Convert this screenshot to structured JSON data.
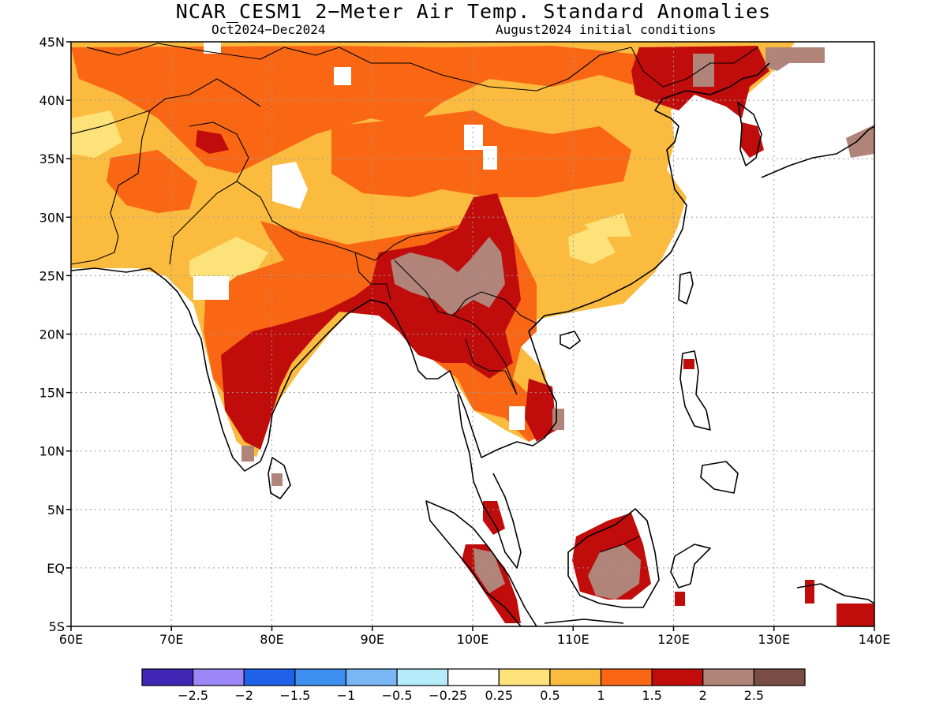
{
  "title": "NCAR_CESM1 2−Meter Air Temp. Standard Anomalies",
  "period": "Oct2024−Dec2024",
  "init": "August2024 initial conditions",
  "map": {
    "lon_range": [
      60,
      140
    ],
    "lat_range": [
      -5,
      45
    ],
    "lon_ticks": [
      {
        "value": 60,
        "label": "60E"
      },
      {
        "value": 70,
        "label": "70E"
      },
      {
        "value": 80,
        "label": "80E"
      },
      {
        "value": 90,
        "label": "90E"
      },
      {
        "value": 100,
        "label": "100E"
      },
      {
        "value": 110,
        "label": "110E"
      },
      {
        "value": 120,
        "label": "120E"
      },
      {
        "value": 130,
        "label": "130E"
      },
      {
        "value": 140,
        "label": "140E"
      }
    ],
    "lat_ticks": [
      {
        "value": 45,
        "label": "45N"
      },
      {
        "value": 40,
        "label": "40N"
      },
      {
        "value": 35,
        "label": "35N"
      },
      {
        "value": 30,
        "label": "30N"
      },
      {
        "value": 25,
        "label": "25N"
      },
      {
        "value": 20,
        "label": "20N"
      },
      {
        "value": 15,
        "label": "15N"
      },
      {
        "value": 10,
        "label": "10N"
      },
      {
        "value": 5,
        "label": "5N"
      },
      {
        "value": 0,
        "label": "EQ"
      },
      {
        "value": -5,
        "label": "5S"
      }
    ]
  },
  "colorbar": {
    "colors": [
      "#3f26b4",
      "#9b87f5",
      "#1f61e8",
      "#3d8ff0",
      "#78b6f6",
      "#b4ecfa",
      "#ffffff",
      "#fde27a",
      "#fbbb3e",
      "#f96715",
      "#c00c0b",
      "#b08479",
      "#7a4d44"
    ],
    "labels": [
      "−2.5",
      "−2",
      "−1.5",
      "−1",
      "−0.5",
      "−0.25",
      "0.25",
      "0.5",
      "1",
      "1.5",
      "2",
      "2.5"
    ]
  }
}
